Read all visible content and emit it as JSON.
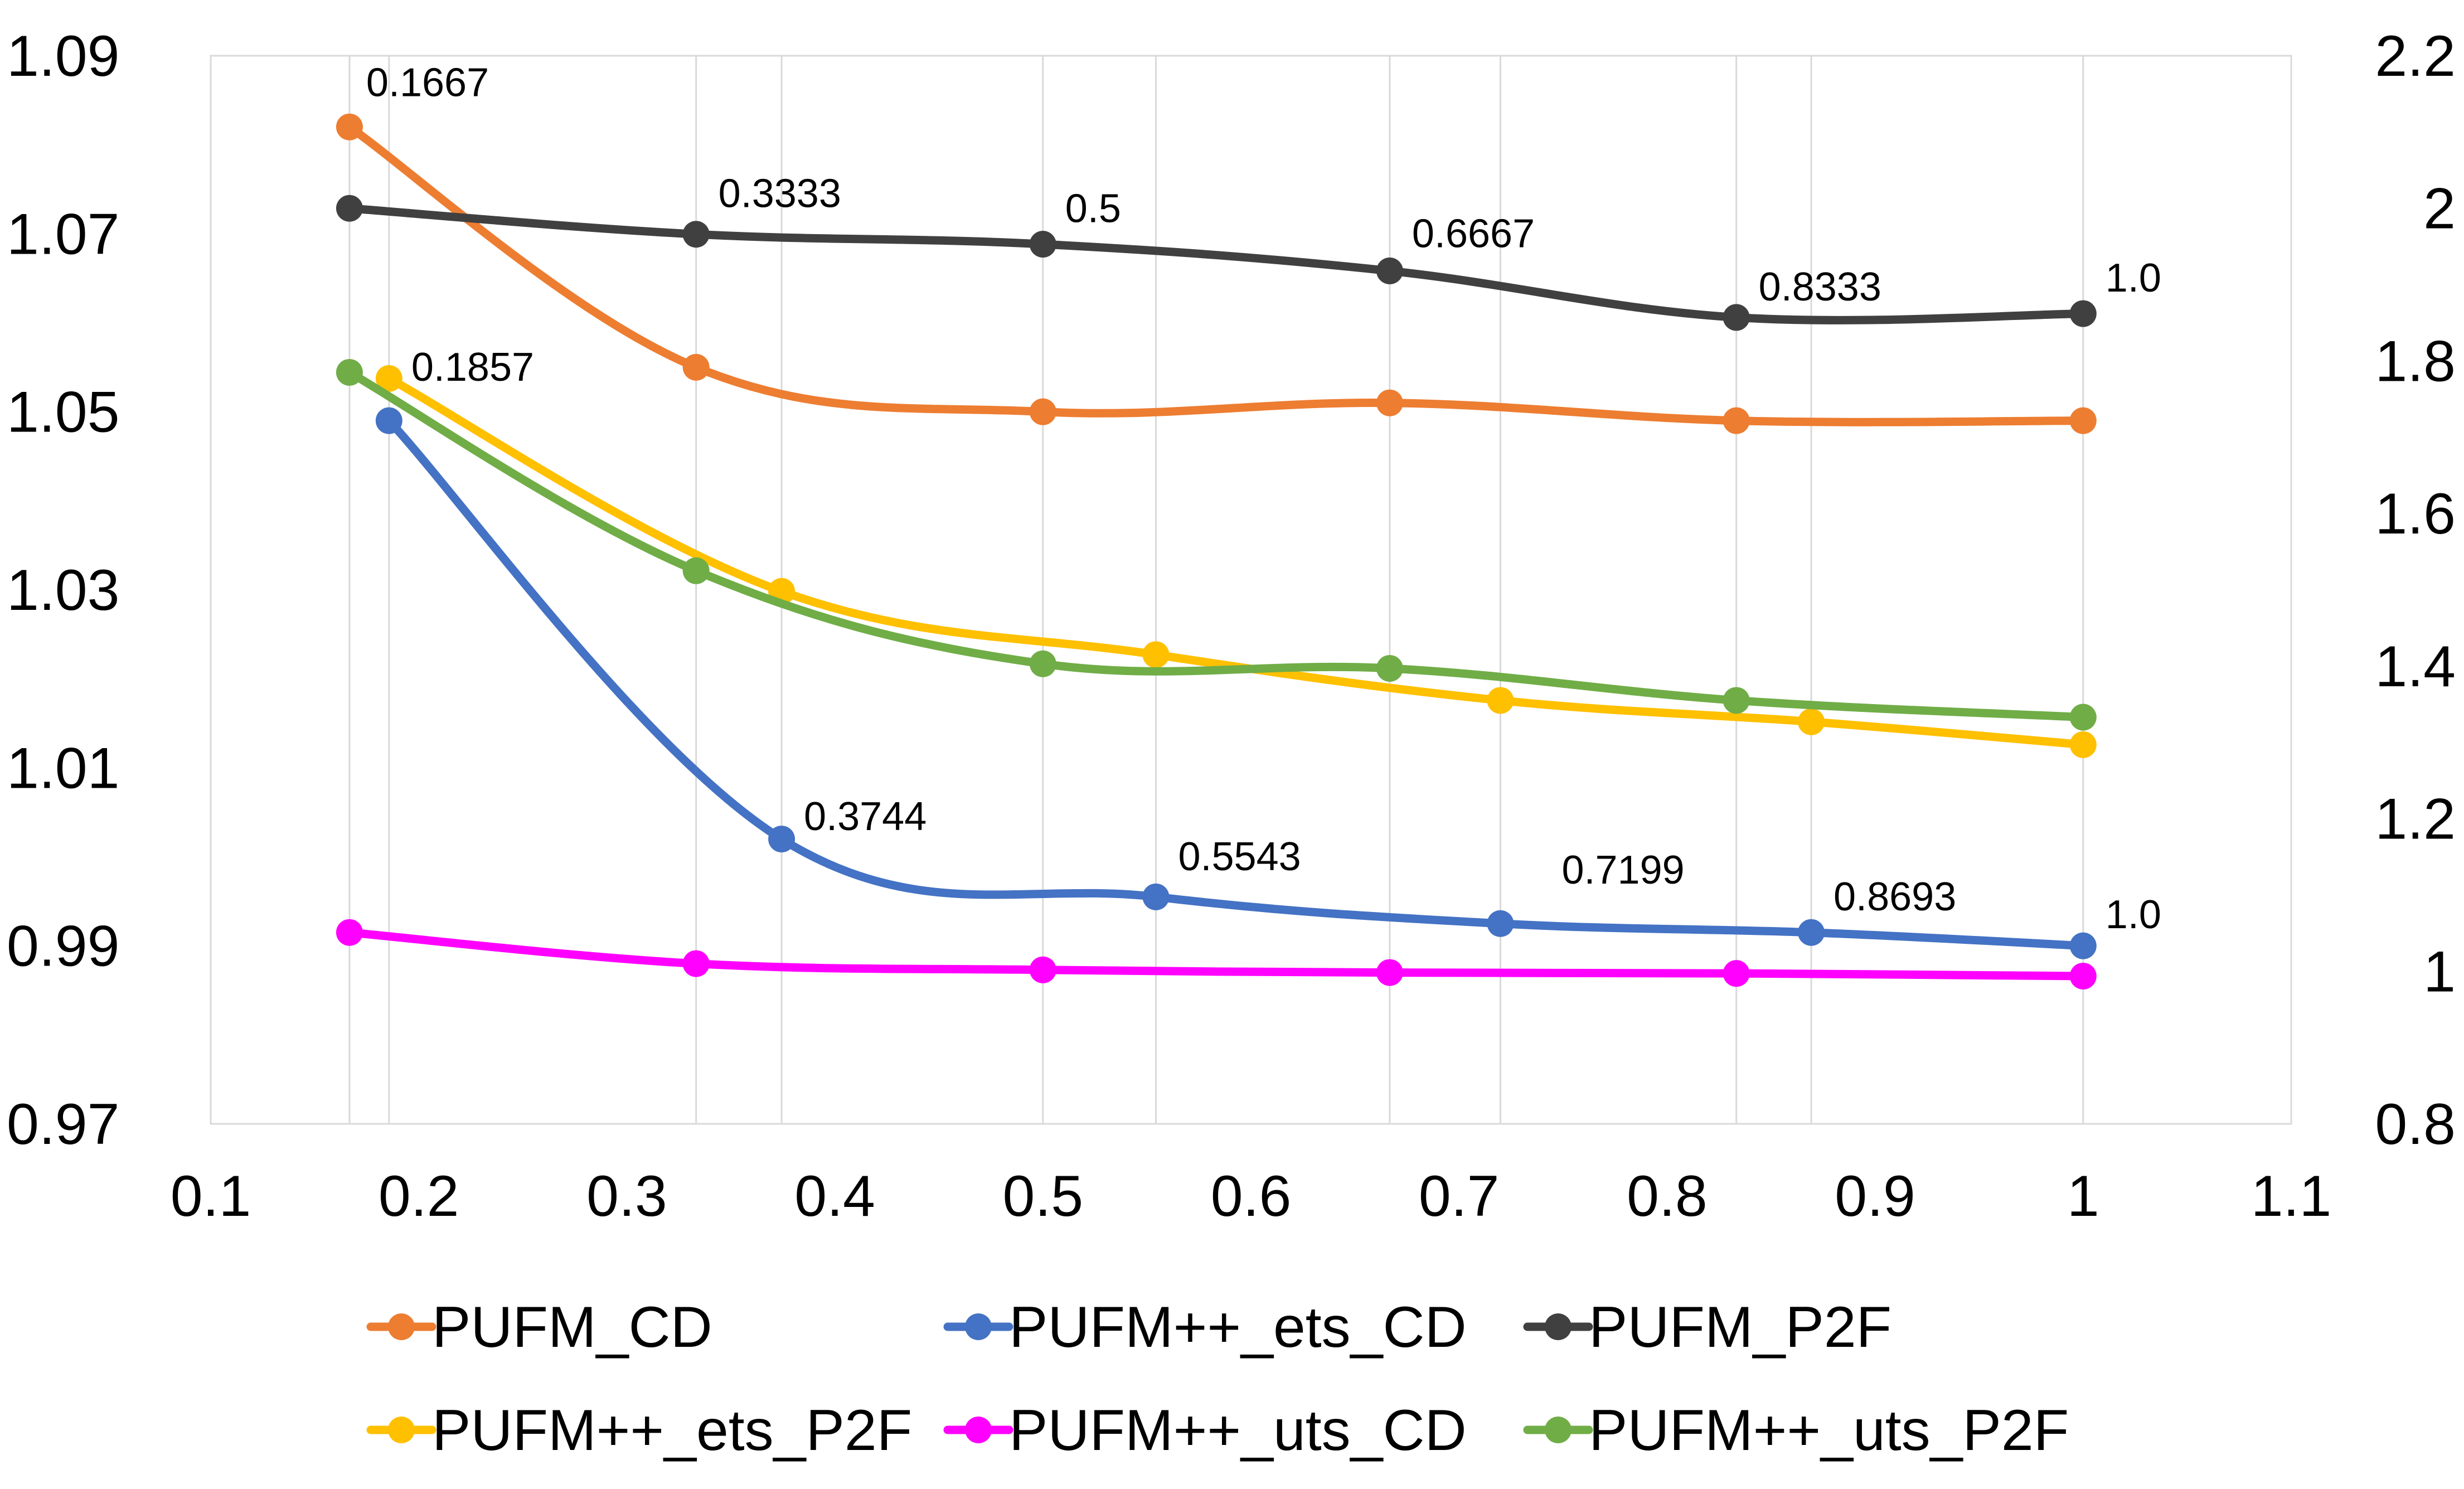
{
  "chart_data": {
    "type": "line",
    "title": "",
    "xlabel": "",
    "ylabel": "",
    "y2label": "",
    "xlim": [
      0.1,
      1.1
    ],
    "x_ticks": [
      "0.1",
      "0.2",
      "0.3",
      "0.4",
      "0.5",
      "0.6",
      "0.7",
      "0.8",
      "0.9",
      "1",
      "1.1"
    ],
    "ylim": [
      0.97,
      1.09
    ],
    "y_ticks": [
      "0.97",
      "0.99",
      "1.01",
      "1.03",
      "1.05",
      "1.07",
      "1.09"
    ],
    "y2lim": [
      0.8,
      2.2
    ],
    "y2_ticks": [
      "0.8",
      "1",
      "1.2",
      "1.4",
      "1.6",
      "1.8",
      "2",
      "2.2"
    ],
    "grid": "vertical",
    "legend_position": "bottom",
    "series": [
      {
        "name": "PUFM_CD",
        "color": "#ED7D31",
        "axis": "left",
        "x": [
          0.1667,
          0.3333,
          0.5,
          0.6667,
          0.8333,
          1.0
        ],
        "values": [
          1.082,
          1.055,
          1.05,
          1.051,
          1.049,
          1.049
        ]
      },
      {
        "name": "PUFM++_ets_CD",
        "color": "#4472C4",
        "axis": "left",
        "x": [
          0.1857,
          0.3744,
          0.5543,
          0.7199,
          0.8693,
          1.0
        ],
        "values": [
          1.049,
          1.002,
          0.9955,
          0.9925,
          0.9915,
          0.99
        ]
      },
      {
        "name": "PUFM_P2F",
        "color": "#404040",
        "axis": "right",
        "x": [
          0.1667,
          0.3333,
          0.5,
          0.6667,
          0.8333,
          1.0
        ],
        "values": [
          2.0,
          1.966,
          1.953,
          1.918,
          1.857,
          1.862
        ]
      },
      {
        "name": "PUFM++_ets_P2F",
        "color": "#FFC000",
        "axis": "right",
        "x": [
          0.1857,
          0.3744,
          0.5543,
          0.7199,
          0.8693,
          1.0
        ],
        "values": [
          1.777,
          1.498,
          1.415,
          1.355,
          1.327,
          1.297
        ]
      },
      {
        "name": "PUFM++_uts_CD",
        "color": "#FF00FF",
        "axis": "left",
        "x": [
          0.1667,
          0.3333,
          0.5,
          0.6667,
          0.8333,
          1.0
        ],
        "values": [
          0.9915,
          0.988,
          0.9873,
          0.987,
          0.9869,
          0.9866
        ]
      },
      {
        "name": "PUFM++_uts_P2F",
        "color": "#70AD47",
        "axis": "right",
        "x": [
          0.1667,
          0.3333,
          0.5,
          0.6667,
          0.8333,
          1.0
        ],
        "values": [
          1.785,
          1.525,
          1.403,
          1.397,
          1.355,
          1.333
        ]
      }
    ],
    "annotations": [
      {
        "text": "0.1667",
        "x": 0.1667,
        "y": 1.082,
        "axis": "left",
        "anchor": "upper-right"
      },
      {
        "text": "0.3333",
        "x": 0.3333,
        "y": 1.0745,
        "axis": "left",
        "anchor": "right"
      },
      {
        "text": "0.5",
        "x": 0.5,
        "y": 1.0728,
        "axis": "left",
        "anchor": "right"
      },
      {
        "text": "0.6667",
        "x": 0.6667,
        "y": 1.07,
        "axis": "left",
        "anchor": "right"
      },
      {
        "text": "0.8333",
        "x": 0.8333,
        "y": 1.064,
        "axis": "left",
        "anchor": "right"
      },
      {
        "text": "1.0",
        "x": 1.0,
        "y": 1.065,
        "axis": "left",
        "anchor": "right"
      },
      {
        "text": "0.1857",
        "x": 0.1857,
        "y": 1.055,
        "axis": "left",
        "anchor": "right"
      },
      {
        "text": "0.3744",
        "x": 0.3744,
        "y": 1.0045,
        "axis": "left",
        "anchor": "right"
      },
      {
        "text": "0.5543",
        "x": 0.5543,
        "y": 1.0,
        "axis": "left",
        "anchor": "right"
      },
      {
        "text": "0.7199",
        "x": 0.7199,
        "y": 0.9985,
        "axis": "left",
        "anchor": "left"
      },
      {
        "text": "0.8693",
        "x": 0.8693,
        "y": 0.9955,
        "axis": "left",
        "anchor": "right"
      },
      {
        "text": "1.0",
        "x": 1.0,
        "y": 0.9935,
        "axis": "left",
        "anchor": "right"
      }
    ]
  }
}
